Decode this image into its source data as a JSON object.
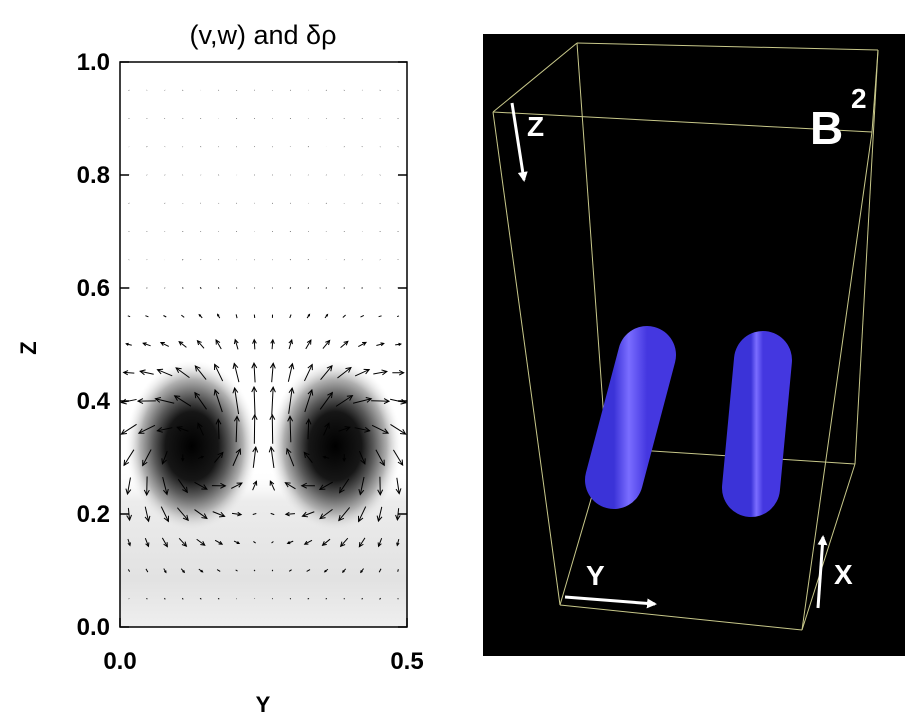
{
  "chart_data": [
    {
      "type": "vector-field-contour",
      "title": "(v,w) and δρ",
      "xlabel": "Y",
      "ylabel": "Z",
      "xlim": [
        0.0,
        0.5
      ],
      "ylim": [
        0.0,
        1.0
      ],
      "x_ticks": [
        "0.0",
        "0.5"
      ],
      "y_ticks": [
        "0.0",
        "0.2",
        "0.4",
        "0.6",
        "0.8",
        "1.0"
      ],
      "density_centers": [
        {
          "y": 0.125,
          "z": 0.32
        },
        {
          "y": 0.375,
          "z": 0.32
        }
      ],
      "vector_grid": {
        "ny": 16,
        "nz": 19,
        "y_range": [
          0.0,
          0.5
        ],
        "z_range": [
          0.05,
          0.95
        ]
      }
    },
    {
      "type": "3d-volume-render",
      "title_base": "B",
      "title_exp": "2",
      "axes": [
        {
          "label": "Z",
          "icon": "arrow-down-icon"
        },
        {
          "label": "Y",
          "icon": "arrow-right-icon"
        },
        {
          "label": "X",
          "icon": "arrow-up-icon"
        }
      ],
      "tubes": 2,
      "tube_color": "#6b5cff",
      "background": "#000000",
      "box_color": "#c8c88a"
    }
  ]
}
